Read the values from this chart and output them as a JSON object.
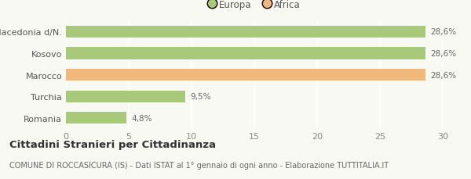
{
  "categories": [
    "Macedonia d/N.",
    "Kosovo",
    "Marocco",
    "Turchia",
    "Romania"
  ],
  "values": [
    28.6,
    28.6,
    28.6,
    9.5,
    4.8
  ],
  "colors": [
    "#a8c87a",
    "#a8c87a",
    "#f0b87a",
    "#a8c87a",
    "#a8c87a"
  ],
  "bar_labels": [
    "28,6%",
    "28,6%",
    "28,6%",
    "9,5%",
    "4,8%"
  ],
  "legend_labels": [
    "Europa",
    "Africa"
  ],
  "legend_colors": [
    "#a8c87a",
    "#f0b87a"
  ],
  "title": "Cittadini Stranieri per Cittadinanza",
  "subtitle": "COMUNE DI ROCCASICURA (IS) - Dati ISTAT al 1° gennaio di ogni anno - Elaborazione TUTTITALIA.IT",
  "xlim": [
    0,
    30
  ],
  "xticks": [
    0,
    5,
    10,
    15,
    20,
    25,
    30
  ],
  "background_color": "#f9f9f4",
  "bar_height": 0.55,
  "title_fontsize": 9.5,
  "subtitle_fontsize": 7,
  "tick_label_fontsize": 8,
  "bar_label_fontsize": 7.5,
  "legend_fontsize": 8.5
}
